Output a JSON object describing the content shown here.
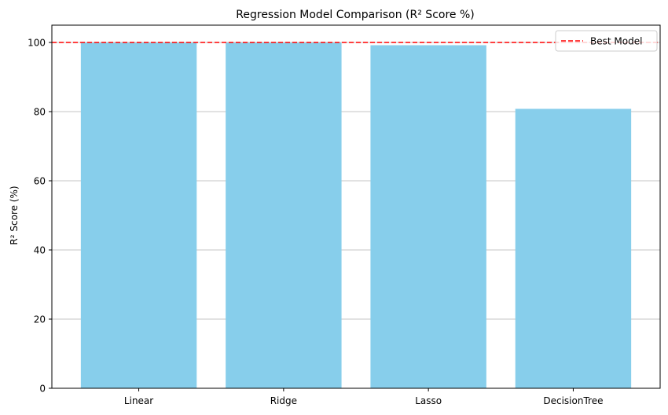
{
  "chart_data": {
    "type": "bar",
    "title": "Regression Model Comparison (R² Score %)",
    "xlabel": "",
    "ylabel": "R² Score (%)",
    "categories": [
      "Linear",
      "Ridge",
      "Lasso",
      "DecisionTree"
    ],
    "values": [
      99.9,
      99.9,
      99.2,
      80.8
    ],
    "ylim": [
      0,
      105
    ],
    "yticks": [
      0,
      20,
      40,
      60,
      80,
      100
    ],
    "grid": "y",
    "reference_line": {
      "value": 100,
      "label": "Best Model",
      "style": "dashed",
      "color": "#ff0000"
    },
    "legend_position": "top-right",
    "bar_color": "#87ceeb"
  }
}
